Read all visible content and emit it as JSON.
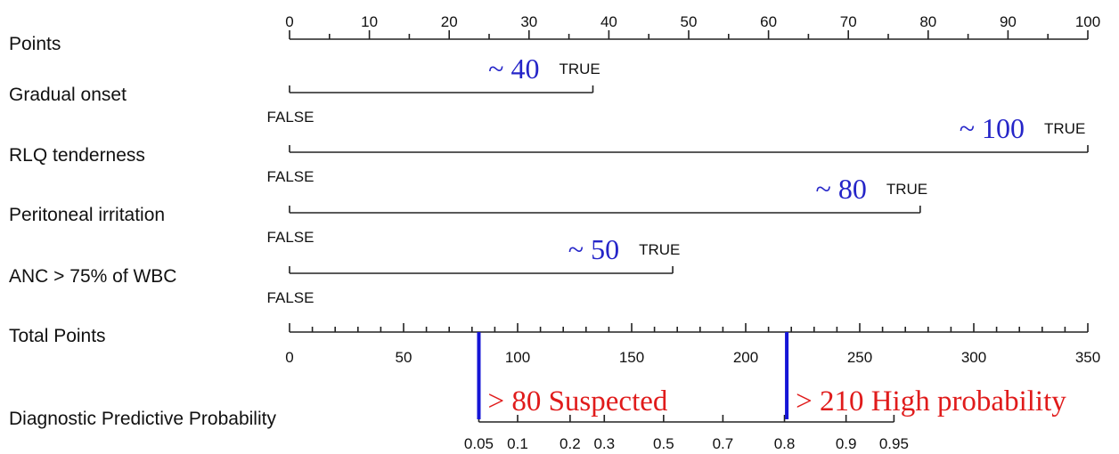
{
  "chart_data": {
    "type": "nomogram",
    "points_axis": {
      "label": "Points",
      "range": [
        0,
        100
      ],
      "major_ticks": [
        0,
        10,
        20,
        30,
        40,
        50,
        60,
        70,
        80,
        90,
        100
      ]
    },
    "predictors": [
      {
        "label": "Gradual  onset",
        "false_label": "FALSE",
        "true_label": "TRUE",
        "points_true": 38,
        "annotation": "~ 40"
      },
      {
        "label": "RLQ  tenderness",
        "false_label": "FALSE",
        "true_label": "TRUE",
        "points_true": 100,
        "annotation": "~ 100"
      },
      {
        "label": "Peritoneal  irritation",
        "false_label": "FALSE",
        "true_label": "TRUE",
        "points_true": 79,
        "annotation": "~ 80"
      },
      {
        "label": "ANC  >  75%  of  WBC",
        "false_label": "FALSE",
        "true_label": "TRUE",
        "points_true": 48,
        "annotation": "~ 50"
      }
    ],
    "total_points_axis": {
      "label": "Total Points",
      "range": [
        0,
        350
      ],
      "major_ticks": [
        0,
        50,
        100,
        150,
        200,
        250,
        300,
        350
      ]
    },
    "probability_axis": {
      "label": "Diagnostic Predictive Probability",
      "ticks": [
        {
          "label": "0.05",
          "total_points": 83
        },
        {
          "label": "0.1",
          "total_points": 100
        },
        {
          "label": "0.2",
          "total_points": 123
        },
        {
          "label": "0.3",
          "total_points": 138
        },
        {
          "label": "0.5",
          "total_points": 164
        },
        {
          "label": "0.7",
          "total_points": 190
        },
        {
          "label": "0.8",
          "total_points": 217
        },
        {
          "label": "0.9",
          "total_points": 244
        },
        {
          "label": "0.95",
          "total_points": 265
        }
      ]
    },
    "cutoffs": [
      {
        "total_points": 83,
        "label": "> 80 Suspected",
        "line_color": "#1515d6",
        "text_color": "#e01b1b"
      },
      {
        "total_points": 218,
        "label": "> 210 High probability",
        "line_color": "#1515d6",
        "text_color": "#e01b1b"
      }
    ],
    "annotation_color": "#2525c8"
  }
}
